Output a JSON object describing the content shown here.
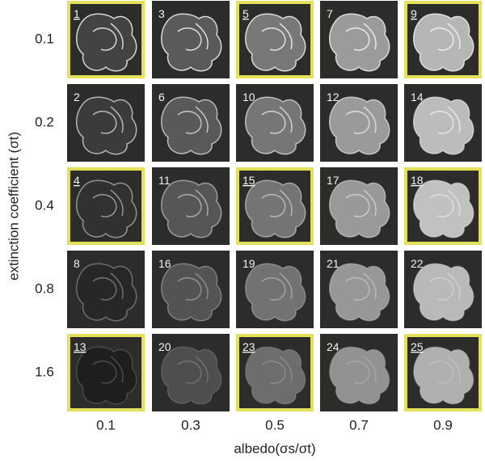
{
  "axes": {
    "y_label": "extinction coefficient (σt)",
    "x_label": "albedo(σs/σt)",
    "rows": [
      "0.1",
      "0.2",
      "0.4",
      "0.8",
      "1.6"
    ],
    "columns": [
      "0.1",
      "0.3",
      "0.5",
      "0.7",
      "0.9"
    ]
  },
  "cells": [
    [
      {
        "label": "1",
        "highlighted": true
      },
      {
        "label": "3",
        "highlighted": false
      },
      {
        "label": "5",
        "highlighted": true
      },
      {
        "label": "7",
        "highlighted": false
      },
      {
        "label": "9",
        "highlighted": true
      }
    ],
    [
      {
        "label": "2",
        "highlighted": false
      },
      {
        "label": "6",
        "highlighted": false
      },
      {
        "label": "10",
        "highlighted": false
      },
      {
        "label": "12",
        "highlighted": false
      },
      {
        "label": "14",
        "highlighted": false
      }
    ],
    [
      {
        "label": "4",
        "highlighted": true
      },
      {
        "label": "11",
        "highlighted": false
      },
      {
        "label": "15",
        "highlighted": true
      },
      {
        "label": "17",
        "highlighted": false
      },
      {
        "label": "18",
        "highlighted": true
      }
    ],
    [
      {
        "label": "8",
        "highlighted": false
      },
      {
        "label": "16",
        "highlighted": false
      },
      {
        "label": "19",
        "highlighted": false
      },
      {
        "label": "21",
        "highlighted": false
      },
      {
        "label": "22",
        "highlighted": false
      }
    ],
    [
      {
        "label": "13",
        "highlighted": true
      },
      {
        "label": "20",
        "highlighted": false
      },
      {
        "label": "23",
        "highlighted": true
      },
      {
        "label": "24",
        "highlighted": false
      },
      {
        "label": "25",
        "highlighted": true
      }
    ]
  ]
}
